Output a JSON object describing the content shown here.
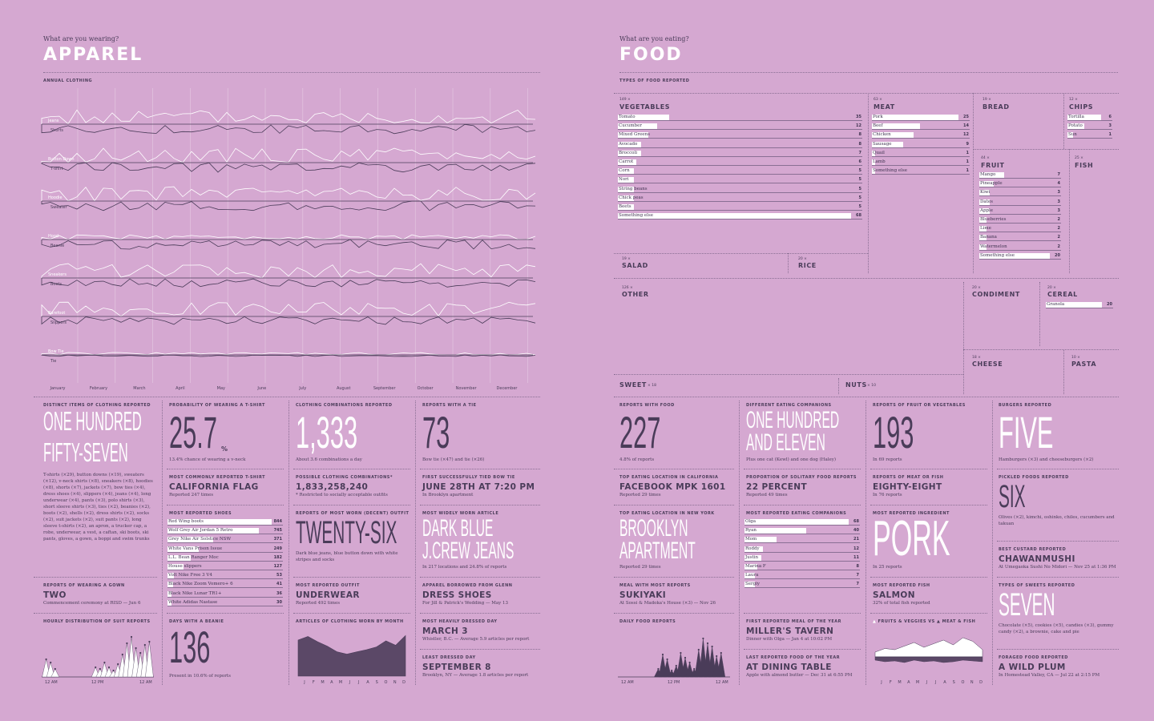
{
  "apparel": {
    "kicker": "What are you wearing?",
    "title": "APPAREL",
    "section_label": "ANNUAL CLOTHING",
    "series": [
      {
        "top": "Jeans",
        "bottom": "Shorts"
      },
      {
        "top": "Button Down",
        "bottom": "T-shirt"
      },
      {
        "top": "Hoodie",
        "bottom": "Sweater"
      },
      {
        "top": "Hood",
        "bottom": "Beanie"
      },
      {
        "top": "Sneakers",
        "bottom": "Boots"
      },
      {
        "top": "Barefoot",
        "bottom": "Slippers"
      },
      {
        "top": "Bow Tie",
        "bottom": "Tie"
      }
    ],
    "months": [
      "January",
      "February",
      "March",
      "April",
      "May",
      "June",
      "July",
      "August",
      "September",
      "October",
      "November",
      "December"
    ],
    "stats": {
      "distinct": {
        "label": "DISTINCT ITEMS OF CLOTHING REPORTED",
        "line1": "ONE HUNDRED",
        "line2": "FIFTY-SEVEN",
        "note": "T-shirts (×29), button downs (×19), sweaters (×12), v-neck shirts (×8), sneakers (×8), hoodies (×8), shorts (×7), jackets (×7), bow ties (×4), dress shoes (×4), slippers (×4), jeans (×4), long underwear (×4), pants (×3), polo shirts (×3), short sleeve shirts (×3), ties (×2), beanies (×2), boots (×2), shells (×2), dress shirts (×2), socks (×2), suit jackets (×2), suit pants (×2), long sleeve t-shirts (×2), an apron, a trucker cap, a robe, underwear, a vest, a caftan, ski boots, ski pants, gloves, a gown, a boppi and swim trunks"
      },
      "tshirt": {
        "label": "PROBABILITY OF WEARING A T-SHIRT",
        "value": "25.7",
        "unit": "%",
        "note": "13.4% chance of wearing a v-neck"
      },
      "combos": {
        "label": "CLOTHING COMBINATIONS REPORTED",
        "value": "1,333",
        "note": "About 3.6 combinations a day"
      },
      "tie": {
        "label": "REPORTS WITH A TIE",
        "value": "73",
        "note": "Bow tie (×47) and tie (×26)"
      },
      "shirt": {
        "label": "MOST COMMONLY REPORTED T-SHIRT",
        "value": "CALIFORNIA FLAG",
        "note": "Reported 247 times"
      },
      "possible": {
        "label": "POSSIBLE CLOTHING COMBINATIONS*",
        "value": "1,833,258,240",
        "note": "* Restricted to socially acceptable outfits"
      },
      "bowtie": {
        "label": "FIRST SUCCESSFULLY TIED BOW TIE",
        "value": "JUNE 28TH AT 7:20 PM",
        "note": "In Brooklyn apartment"
      },
      "shoes": {
        "label": "MOST REPORTED SHOES",
        "items": [
          {
            "name": "Red Wing boots",
            "value": "844",
            "frac": 1.0
          },
          {
            "name": "Wolf Grey Air Jordan 5 Retro",
            "value": "745",
            "frac": 0.88
          },
          {
            "name": "Grey Nike Air Solstice NSW",
            "value": "371",
            "frac": 0.44
          },
          {
            "name": "White Vans Prison Issue",
            "value": "249",
            "frac": 0.3
          },
          {
            "name": "L.L. Bean Ranger Moc",
            "value": "182",
            "frac": 0.22
          },
          {
            "name": "House slippers",
            "value": "127",
            "frac": 0.15
          },
          {
            "name": "Volt Nike Free 3 V4",
            "value": "53",
            "frac": 0.06
          },
          {
            "name": "Black Nike Zoom Vomero+ 6",
            "value": "41",
            "frac": 0.05
          },
          {
            "name": "Black Nike Lunar TR1+",
            "value": "36",
            "frac": 0.04
          },
          {
            "name": "White Adidas Nastase",
            "value": "30",
            "frac": 0.035
          }
        ]
      },
      "outfit": {
        "label": "REPORTS OF MOST WORN (DECENT) OUTFIT",
        "value": "TWENTY-SIX",
        "note": "Dark blue jeans, blue button down with white stripes and socks"
      },
      "article": {
        "label": "MOST WIDELY WORN ARTICLE",
        "line1": "DARK BLUE",
        "line2": "J.CREW JEANS",
        "note": "In 217 locations and 24.8% of reports"
      },
      "gown": {
        "label": "REPORTS OF WEARING A GOWN",
        "value": "TWO",
        "note": "Commencement ceremony at RISD — Jun 6"
      },
      "worst": {
        "label": "MOST REPORTED OUTFIT",
        "value": "UNDERWEAR",
        "note": "Reported 492 times"
      },
      "borrowed": {
        "label": "APPAREL BORROWED FROM GLENN",
        "value": "DRESS SHOES",
        "note": "For Jill & Patrick's Wedding — May 13"
      },
      "suit": {
        "label": "HOURLY DISTRIBUTION OF SUIT REPORTS",
        "ticks": [
          "12 AM",
          "12 PM",
          "12 AM"
        ]
      },
      "beanie": {
        "label": "DAYS WITH A BEANIE",
        "value": "136",
        "note": "Present in 10.6% of reports"
      },
      "bymonth": {
        "label": "ARTICLES OF CLOTHING WORN BY MONTH",
        "ticks": [
          "J",
          "F",
          "M",
          "A",
          "M",
          "J",
          "J",
          "A",
          "S",
          "O",
          "N",
          "D"
        ]
      },
      "heavy": {
        "label": "MOST HEAVILY DRESSED DAY",
        "value": "MARCH 3",
        "note": "Whistler, B.C. — Average 5.9 articles per report"
      },
      "least": {
        "label": "LEAST DRESSED DAY",
        "value": "SEPTEMBER 8",
        "note": "Brooklyn, NY — Average 1.8 articles per report"
      }
    }
  },
  "food": {
    "kicker": "What are you eating?",
    "title": "FOOD",
    "section_label": "TYPES OF FOOD REPORTED",
    "vegetables": {
      "count": "149 ×",
      "name": "VEGETABLES",
      "items": [
        {
          "name": "Tomato",
          "value": "35",
          "frac": 0.22
        },
        {
          "name": "Cucumber",
          "value": "12",
          "frac": 0.17
        },
        {
          "name": "Mixed Greens",
          "value": "8",
          "frac": 0.13
        },
        {
          "name": "Avocado",
          "value": "8",
          "frac": 0.1
        },
        {
          "name": "Broccoli",
          "value": "7",
          "frac": 0.1
        },
        {
          "name": "Carrot",
          "value": "6",
          "frac": 0.08
        },
        {
          "name": "Corn",
          "value": "5",
          "frac": 0.07
        },
        {
          "name": "Nori",
          "value": "5",
          "frac": 0.07
        },
        {
          "name": "String beans",
          "value": "5",
          "frac": 0.07
        },
        {
          "name": "Chick peas",
          "value": "5",
          "frac": 0.07
        },
        {
          "name": "Beets",
          "value": "5",
          "frac": 0.07
        },
        {
          "name": "Something else",
          "value": "68",
          "frac": 1.0
        }
      ]
    },
    "meat": {
      "count": "63 ×",
      "name": "MEAT",
      "items": [
        {
          "name": "Pork",
          "value": "25",
          "frac": 1.0
        },
        {
          "name": "Beef",
          "value": "14",
          "frac": 0.56
        },
        {
          "name": "Chicken",
          "value": "12",
          "frac": 0.48
        },
        {
          "name": "Sausage",
          "value": "9",
          "frac": 0.36
        },
        {
          "name": "Quail",
          "value": "1",
          "frac": 0.04
        },
        {
          "name": "Lamb",
          "value": "1",
          "frac": 0.04
        },
        {
          "name": "Something else",
          "value": "1",
          "frac": 0.04
        }
      ]
    },
    "bread": {
      "count": "19 ×",
      "name": "BREAD"
    },
    "chips": {
      "count": "12 ×",
      "name": "CHIPS",
      "items": [
        {
          "name": "Tortilla",
          "value": "6",
          "frac": 1.0
        },
        {
          "name": "Potato",
          "value": "3",
          "frac": 0.5
        },
        {
          "name": "Sun",
          "value": "1",
          "frac": 0.17
        }
      ]
    },
    "fruit": {
      "count": "44 ×",
      "name": "FRUIT",
      "items": [
        {
          "name": "Mango",
          "value": "7",
          "frac": 0.35
        },
        {
          "name": "Pineapple",
          "value": "4",
          "frac": 0.2
        },
        {
          "name": "Kiwi",
          "value": "3",
          "frac": 0.15
        },
        {
          "name": "Dates",
          "value": "3",
          "frac": 0.15
        },
        {
          "name": "Apple",
          "value": "3",
          "frac": 0.15
        },
        {
          "name": "Blueberries",
          "value": "2",
          "frac": 0.1
        },
        {
          "name": "Lime",
          "value": "2",
          "frac": 0.1
        },
        {
          "name": "Banana",
          "value": "2",
          "frac": 0.1
        },
        {
          "name": "Watermelon",
          "value": "2",
          "frac": 0.1
        },
        {
          "name": "Something else",
          "value": "20",
          "frac": 1.0
        }
      ]
    },
    "fish": {
      "count": "25 ×",
      "name": "FISH"
    },
    "salad": {
      "count": "19 ×",
      "name": "SALAD"
    },
    "rice": {
      "count": "20 ×",
      "name": "RICE"
    },
    "other": {
      "count": "126 ×",
      "name": "OTHER"
    },
    "condiment": {
      "count": "20 ×",
      "name": "CONDIMENT"
    },
    "cereal": {
      "count": "20 ×",
      "name": "CEREAL",
      "items": [
        {
          "name": "Granola",
          "value": "20",
          "frac": 1.0
        }
      ]
    },
    "cheese": {
      "count": "18 ×",
      "name": "CHEESE"
    },
    "pasta": {
      "count": "10 ×",
      "name": "PASTA"
    },
    "sweet": {
      "name": "SWEET",
      "count": "× 18"
    },
    "nuts": {
      "name": "NUTS",
      "count": "× 10"
    },
    "stats": {
      "reports": {
        "label": "REPORTS WITH FOOD",
        "value": "227",
        "note": "4.8% of reports"
      },
      "companions": {
        "label": "DIFFERENT EATING COMPANIONS",
        "line1": "ONE HUNDRED",
        "line2": "AND ELEVEN",
        "note": "Plus one cat (Kewl) and one dog (Haley)"
      },
      "fruitveg": {
        "label": "REPORTS OF FRUIT OR VEGETABLES",
        "value": "193",
        "note": "In 69 reports"
      },
      "burgers": {
        "label": "BURGERS REPORTED",
        "value": "FIVE",
        "note": "Hamburgers (×3) and cheeseburgers (×2)"
      },
      "ca": {
        "label": "TOP EATING LOCATION IN CALIFORNIA",
        "value": "FACEBOOK MPK 1601",
        "note": "Reported 29 times"
      },
      "solitary": {
        "label": "PROPORTION OF SOLITARY FOOD REPORTS",
        "value": "22 PERCENT",
        "note": "Reported 49 times"
      },
      "meatfish": {
        "label": "REPORTS OF MEAT OR FISH",
        "value": "EIGHTY-EIGHT",
        "note": "In 76 reports"
      },
      "pickled": {
        "label": "PICKLED FOODS REPORTED",
        "value": "SIX",
        "note": "Olives (×2), kimchi, oshinko, chiles, cucumbers and takuan"
      },
      "ny": {
        "label": "TOP EATING LOCATION IN NEW YORK",
        "line1": "BROOKLYN",
        "line2": "APARTMENT",
        "note": "Reported 29 times"
      },
      "eaters": {
        "label": "MOST REPORTED EATING COMPANIONS",
        "items": [
          {
            "name": "Olga",
            "value": "68",
            "frac": 1.0
          },
          {
            "name": "Ryan",
            "value": "40",
            "frac": 0.59
          },
          {
            "name": "Mom",
            "value": "21",
            "frac": 0.31
          },
          {
            "name": "Roddy",
            "value": "12",
            "frac": 0.18
          },
          {
            "name": "Justin",
            "value": "11",
            "frac": 0.16
          },
          {
            "name": "Marina F",
            "value": "8",
            "frac": 0.12
          },
          {
            "name": "Laura",
            "value": "7",
            "frac": 0.1
          },
          {
            "name": "Sergiy",
            "value": "7",
            "frac": 0.1
          }
        ]
      },
      "ingredient": {
        "label": "MOST REPORTED INGREDIENT",
        "value": "PORK",
        "note": "In 25 reports"
      },
      "custard": {
        "label": "BEST CUSTARD REPORTED",
        "value": "CHAWANMUSHI",
        "note": "At Umegaoka Sushi No Midori — Nov 25 at 1:36 PM"
      },
      "meal": {
        "label": "MEAL WITH MOST REPORTS",
        "value": "SUKIYAKI",
        "note": "At Sossi & Madoka's House (×3) — Nov 26"
      },
      "fishrep": {
        "label": "MOST REPORTED FISH",
        "value": "SALMON",
        "note": "32% of total fish reported"
      },
      "sweets": {
        "label": "TYPES OF SWEETS REPORTED",
        "value": "SEVEN",
        "note": "Chocolate (×5), cookies (×5), candies (×3), gummy candy (×2), a brownie, cake and pie"
      },
      "daily": {
        "label": "DAILY FOOD REPORTS",
        "ticks": [
          "12 AM",
          "12 PM",
          "12 AM"
        ]
      },
      "firstmeal": {
        "label": "FIRST REPORTED MEAL OF THE YEAR",
        "value": "MILLER'S TAVERN",
        "note": "Dinner with Olga — Jan 4 at 10:02 PM"
      },
      "lastmeal": {
        "label": "LAST REPORTED FOOD OF THE YEAR",
        "value": "AT DINING TABLE",
        "note": "Apple with almond butter — Dec 31 at 6:55 PM"
      },
      "fvm": {
        "label_a": "FRUITS & VEGGIES",
        "vs": "VS",
        "label_b": "MEAT & FISH",
        "ticks": [
          "J",
          "F",
          "M",
          "A",
          "M",
          "J",
          "J",
          "A",
          "S",
          "O",
          "N",
          "D"
        ]
      },
      "foraged": {
        "label": "FORAGED FOOD REPORTED",
        "value": "A WILD PLUM",
        "note": "In Homestead Valley, CA — Jul 22 at 2:15 PM"
      }
    }
  }
}
